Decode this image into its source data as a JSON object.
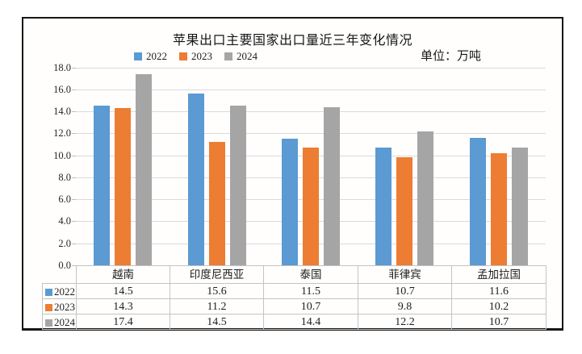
{
  "figure": {
    "title": "苹果出口主要国家出口量近三年变化情况",
    "unit_label": "单位：万吨"
  },
  "chart_data": {
    "type": "bar",
    "title": "苹果出口主要国家出口量近三年变化情况",
    "unit": "万吨",
    "categories": [
      "越南",
      "印度尼西亚",
      "泰国",
      "菲律宾",
      "孟加拉国"
    ],
    "series": [
      {
        "name": "2022",
        "color": "#5B9AD2",
        "values": [
          14.5,
          15.6,
          11.5,
          10.7,
          11.6
        ]
      },
      {
        "name": "2023",
        "color": "#EC7D33",
        "values": [
          14.3,
          11.2,
          10.7,
          9.8,
          10.2
        ]
      },
      {
        "name": "2024",
        "color": "#A5A5A5",
        "values": [
          17.4,
          14.5,
          14.4,
          12.2,
          10.7
        ]
      }
    ],
    "ylim": [
      0,
      18
    ],
    "ytick_step": 2,
    "ytick_labels": [
      "0.0",
      "2.0",
      "4.0",
      "6.0",
      "8.0",
      "10.0",
      "12.0",
      "14.0",
      "16.0",
      "18.0"
    ],
    "grid": true,
    "legend_position": "top-left",
    "show_data_table": true
  },
  "colors": {
    "grid_line": "#DADADA",
    "axis_tick": "#BDBDBD",
    "table_border": "#C4C4C4",
    "frame_border": "#161616",
    "text": "#1F1F1F"
  }
}
